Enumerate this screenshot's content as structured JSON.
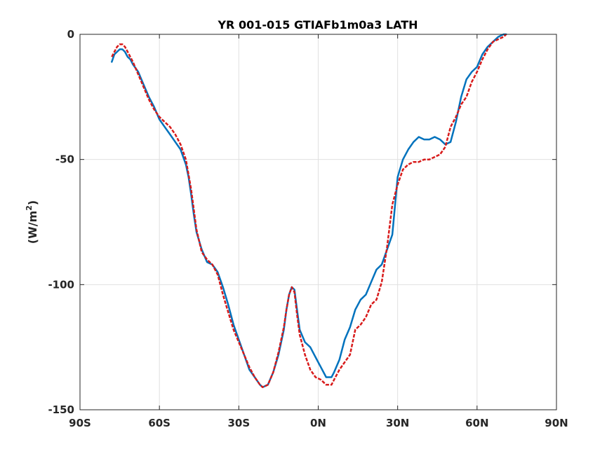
{
  "chart_data": {
    "type": "line",
    "title": "YR 001-015 GTIAFb1m0a3 LATH",
    "ylabel": "(W/m",
    "ylabel_superscript": "2",
    "ylabel_suffix": ")",
    "xlim": [
      -90,
      90
    ],
    "ylim": [
      -150,
      0
    ],
    "grid": true,
    "x_ticks": [
      -90,
      -60,
      -30,
      0,
      30,
      60,
      90
    ],
    "x_tick_labels": [
      "90S",
      "60S",
      "30S",
      "0N",
      "30N",
      "60N",
      "90N"
    ],
    "y_ticks": [
      0,
      -50,
      -100,
      -150
    ],
    "y_tick_labels": [
      "0",
      "-50",
      "-100",
      "-150"
    ],
    "series": [
      {
        "color": "#0072BD",
        "style": "solid",
        "points": [
          [
            -78,
            -11
          ],
          [
            -77,
            -8
          ],
          [
            -76,
            -7
          ],
          [
            -75,
            -6
          ],
          [
            -74,
            -6
          ],
          [
            -73,
            -7
          ],
          [
            -72,
            -9
          ],
          [
            -71,
            -10
          ],
          [
            -70,
            -12
          ],
          [
            -68,
            -15
          ],
          [
            -66,
            -20
          ],
          [
            -64,
            -25
          ],
          [
            -62,
            -29
          ],
          [
            -60,
            -34
          ],
          [
            -58,
            -37
          ],
          [
            -56,
            -40
          ],
          [
            -54,
            -43
          ],
          [
            -52,
            -46
          ],
          [
            -50,
            -52
          ],
          [
            -49,
            -57
          ],
          [
            -48,
            -64
          ],
          [
            -47,
            -72
          ],
          [
            -46,
            -79
          ],
          [
            -44,
            -86
          ],
          [
            -42,
            -91
          ],
          [
            -40,
            -92
          ],
          [
            -38,
            -95
          ],
          [
            -36,
            -101
          ],
          [
            -34,
            -108
          ],
          [
            -32,
            -116
          ],
          [
            -30,
            -122
          ],
          [
            -28,
            -128
          ],
          [
            -26,
            -134
          ],
          [
            -24,
            -137
          ],
          [
            -22,
            -140
          ],
          [
            -21,
            -141
          ],
          [
            -19,
            -140
          ],
          [
            -17,
            -135
          ],
          [
            -15,
            -128
          ],
          [
            -13,
            -118
          ],
          [
            -12,
            -110
          ],
          [
            -11,
            -104
          ],
          [
            -10,
            -101
          ],
          [
            -9,
            -102
          ],
          [
            -8,
            -110
          ],
          [
            -7,
            -118
          ],
          [
            -5,
            -123
          ],
          [
            -3,
            -125
          ],
          [
            -1,
            -129
          ],
          [
            1,
            -133
          ],
          [
            3,
            -137
          ],
          [
            5,
            -137
          ],
          [
            6,
            -135
          ],
          [
            8,
            -130
          ],
          [
            10,
            -122
          ],
          [
            12,
            -117
          ],
          [
            14,
            -110
          ],
          [
            16,
            -106
          ],
          [
            18,
            -104
          ],
          [
            20,
            -99
          ],
          [
            22,
            -94
          ],
          [
            24,
            -92
          ],
          [
            26,
            -86
          ],
          [
            28,
            -80
          ],
          [
            30,
            -57
          ],
          [
            32,
            -50
          ],
          [
            34,
            -46
          ],
          [
            36,
            -43
          ],
          [
            38,
            -41
          ],
          [
            40,
            -42
          ],
          [
            42,
            -42
          ],
          [
            44,
            -41
          ],
          [
            46,
            -42
          ],
          [
            48,
            -44
          ],
          [
            50,
            -43
          ],
          [
            52,
            -35
          ],
          [
            54,
            -25
          ],
          [
            56,
            -18
          ],
          [
            58,
            -15
          ],
          [
            60,
            -13
          ],
          [
            62,
            -8
          ],
          [
            64,
            -5
          ],
          [
            66,
            -3
          ],
          [
            68,
            -1
          ],
          [
            70,
            0
          ],
          [
            71,
            0
          ]
        ]
      },
      {
        "color": "#D81B1B",
        "style": "dashed",
        "points": [
          [
            -78,
            -9
          ],
          [
            -77,
            -7
          ],
          [
            -76,
            -5
          ],
          [
            -75,
            -4
          ],
          [
            -74,
            -4
          ],
          [
            -73,
            -5
          ],
          [
            -72,
            -7
          ],
          [
            -70,
            -11
          ],
          [
            -68,
            -16
          ],
          [
            -66,
            -21
          ],
          [
            -64,
            -26
          ],
          [
            -62,
            -30
          ],
          [
            -60,
            -33
          ],
          [
            -58,
            -35
          ],
          [
            -56,
            -37
          ],
          [
            -54,
            -40
          ],
          [
            -52,
            -44
          ],
          [
            -50,
            -50
          ],
          [
            -49,
            -56
          ],
          [
            -48,
            -62
          ],
          [
            -47,
            -70
          ],
          [
            -46,
            -78
          ],
          [
            -44,
            -87
          ],
          [
            -42,
            -90
          ],
          [
            -40,
            -92
          ],
          [
            -38,
            -96
          ],
          [
            -36,
            -104
          ],
          [
            -34,
            -111
          ],
          [
            -32,
            -118
          ],
          [
            -30,
            -123
          ],
          [
            -28,
            -128
          ],
          [
            -26,
            -133
          ],
          [
            -24,
            -137
          ],
          [
            -22,
            -140
          ],
          [
            -21,
            -141
          ],
          [
            -19,
            -140
          ],
          [
            -17,
            -135
          ],
          [
            -15,
            -127
          ],
          [
            -13,
            -117
          ],
          [
            -12,
            -110
          ],
          [
            -11,
            -104
          ],
          [
            -10,
            -101
          ],
          [
            -9,
            -103
          ],
          [
            -8,
            -112
          ],
          [
            -7,
            -120
          ],
          [
            -5,
            -128
          ],
          [
            -3,
            -134
          ],
          [
            -1,
            -137
          ],
          [
            1,
            -138
          ],
          [
            3,
            -140
          ],
          [
            5,
            -140
          ],
          [
            6,
            -138
          ],
          [
            8,
            -134
          ],
          [
            10,
            -131
          ],
          [
            12,
            -128
          ],
          [
            14,
            -118
          ],
          [
            16,
            -116
          ],
          [
            18,
            -113
          ],
          [
            20,
            -108
          ],
          [
            22,
            -106
          ],
          [
            24,
            -99
          ],
          [
            26,
            -85
          ],
          [
            28,
            -68
          ],
          [
            30,
            -60
          ],
          [
            32,
            -54
          ],
          [
            34,
            -52
          ],
          [
            36,
            -51
          ],
          [
            38,
            -51
          ],
          [
            40,
            -50
          ],
          [
            42,
            -50
          ],
          [
            44,
            -49
          ],
          [
            46,
            -48
          ],
          [
            48,
            -45
          ],
          [
            50,
            -37
          ],
          [
            52,
            -33
          ],
          [
            54,
            -28
          ],
          [
            56,
            -25
          ],
          [
            58,
            -19
          ],
          [
            60,
            -15
          ],
          [
            62,
            -10
          ],
          [
            64,
            -6
          ],
          [
            66,
            -3
          ],
          [
            68,
            -2
          ],
          [
            70,
            -1
          ],
          [
            71,
            0
          ]
        ]
      }
    ]
  }
}
